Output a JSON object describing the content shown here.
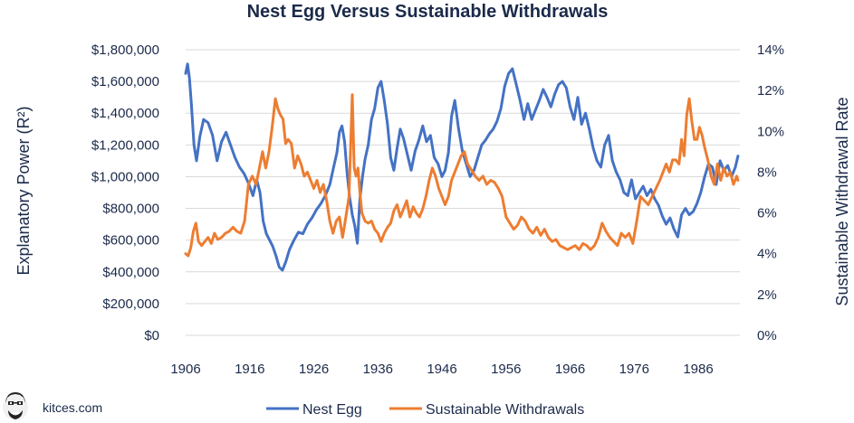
{
  "brand": {
    "name": "kitces.com",
    "logo_icon": "cartoon-face-logo-icon"
  },
  "chart_data": {
    "type": "line",
    "title": "Nest Egg Versus Sustainable Withdrawals",
    "ylabel_left": "Explanatory Power (R²)",
    "ylabel_right": "Sustainable Withdrawal Rate",
    "ylim_left": [
      0,
      1800000
    ],
    "ylim_right": [
      0,
      14
    ],
    "xlim": [
      1906,
      1992.5
    ],
    "x_ticks": [
      {
        "value": 1906,
        "label": "1906"
      },
      {
        "value": 1916,
        "label": "1916"
      },
      {
        "value": 1926,
        "label": "1926"
      },
      {
        "value": 1936,
        "label": "1936"
      },
      {
        "value": 1946,
        "label": "1946"
      },
      {
        "value": 1956,
        "label": "1956"
      },
      {
        "value": 1966,
        "label": "1966"
      },
      {
        "value": 1976,
        "label": "1976"
      },
      {
        "value": 1986,
        "label": "1986"
      }
    ],
    "y_left_ticks": [
      {
        "value": 0,
        "label": "$0"
      },
      {
        "value": 200000,
        "label": "$200,000"
      },
      {
        "value": 400000,
        "label": "$400,000"
      },
      {
        "value": 600000,
        "label": "$600,000"
      },
      {
        "value": 800000,
        "label": "$800,000"
      },
      {
        "value": 1000000,
        "label": "$1,000,000"
      },
      {
        "value": 1200000,
        "label": "$1,200,000"
      },
      {
        "value": 1400000,
        "label": "$1,400,000"
      },
      {
        "value": 1600000,
        "label": "$1,600,000"
      },
      {
        "value": 1800000,
        "label": "$1,800,000"
      }
    ],
    "y_right_ticks": [
      {
        "value": 0,
        "label": "0%"
      },
      {
        "value": 2,
        "label": "2%"
      },
      {
        "value": 4,
        "label": "4%"
      },
      {
        "value": 6,
        "label": "6%"
      },
      {
        "value": 8,
        "label": "8%"
      },
      {
        "value": 10,
        "label": "10%"
      },
      {
        "value": 12,
        "label": "12%"
      },
      {
        "value": 14,
        "label": "14%"
      }
    ],
    "grid": true,
    "legend_position": "bottom-center",
    "series": [
      {
        "name": "Nest Egg",
        "axis": "left",
        "color": "#4472c4",
        "x": [
          1906.0,
          1906.3,
          1906.6,
          1906.9,
          1907.3,
          1907.7,
          1908.2,
          1908.8,
          1909.5,
          1910.2,
          1910.9,
          1911.6,
          1912.3,
          1913.0,
          1913.7,
          1914.4,
          1915.1,
          1915.8,
          1916.5,
          1917.1,
          1917.6,
          1918.1,
          1918.6,
          1919.1,
          1919.6,
          1920.1,
          1920.6,
          1921.1,
          1921.6,
          1922.2,
          1922.9,
          1923.6,
          1924.3,
          1925.0,
          1925.7,
          1926.4,
          1927.1,
          1927.8,
          1928.5,
          1929.1,
          1929.6,
          1930.0,
          1930.4,
          1930.8,
          1931.2,
          1931.6,
          1932.0,
          1932.4,
          1932.8,
          1933.2,
          1933.6,
          1934.0,
          1934.5,
          1935.0,
          1935.5,
          1936.0,
          1936.5,
          1937.0,
          1937.5,
          1938.0,
          1938.5,
          1939.0,
          1939.5,
          1940.0,
          1940.6,
          1941.2,
          1941.8,
          1942.4,
          1943.0,
          1943.6,
          1944.2,
          1944.8,
          1945.4,
          1946.0,
          1946.5,
          1947.0,
          1947.5,
          1948.0,
          1948.6,
          1949.2,
          1949.8,
          1950.4,
          1951.0,
          1951.6,
          1952.2,
          1952.8,
          1953.4,
          1954.0,
          1954.6,
          1955.2,
          1955.8,
          1956.4,
          1957.0,
          1957.6,
          1958.2,
          1958.8,
          1959.4,
          1960.0,
          1960.6,
          1961.2,
          1961.8,
          1962.4,
          1963.0,
          1963.6,
          1964.2,
          1964.8,
          1965.4,
          1966.0,
          1966.6,
          1967.2,
          1967.8,
          1968.4,
          1969.0,
          1969.6,
          1970.2,
          1970.8,
          1971.4,
          1972.0,
          1972.6,
          1973.2,
          1973.8,
          1974.4,
          1975.0,
          1975.6,
          1976.2,
          1976.8,
          1977.4,
          1978.0,
          1978.6,
          1979.2,
          1979.8,
          1980.4,
          1981.0,
          1981.6,
          1982.2,
          1982.8,
          1983.4,
          1984.0,
          1984.6,
          1985.2,
          1985.8,
          1986.4,
          1987.0,
          1987.6,
          1988.2,
          1988.8,
          1989.4,
          1990.0,
          1990.6,
          1991.2,
          1991.8,
          1992.2
        ],
        "y": [
          1650000,
          1710000,
          1620000,
          1450000,
          1200000,
          1100000,
          1250000,
          1360000,
          1340000,
          1260000,
          1100000,
          1220000,
          1280000,
          1200000,
          1120000,
          1060000,
          1020000,
          960000,
          880000,
          980000,
          900000,
          720000,
          640000,
          600000,
          560000,
          500000,
          430000,
          410000,
          460000,
          540000,
          600000,
          650000,
          640000,
          700000,
          740000,
          790000,
          830000,
          880000,
          950000,
          1060000,
          1150000,
          1280000,
          1320000,
          1220000,
          1020000,
          870000,
          760000,
          690000,
          580000,
          860000,
          1000000,
          1110000,
          1200000,
          1360000,
          1430000,
          1560000,
          1600000,
          1480000,
          1330000,
          1120000,
          1040000,
          1180000,
          1300000,
          1240000,
          1140000,
          1040000,
          1160000,
          1230000,
          1320000,
          1220000,
          1260000,
          1120000,
          1080000,
          1000000,
          1040000,
          1150000,
          1380000,
          1480000,
          1300000,
          1160000,
          1080000,
          1000000,
          1040000,
          1120000,
          1200000,
          1230000,
          1270000,
          1300000,
          1350000,
          1430000,
          1570000,
          1650000,
          1680000,
          1580000,
          1480000,
          1360000,
          1460000,
          1360000,
          1420000,
          1480000,
          1550000,
          1500000,
          1440000,
          1520000,
          1580000,
          1600000,
          1560000,
          1440000,
          1360000,
          1500000,
          1330000,
          1400000,
          1300000,
          1180000,
          1100000,
          1060000,
          1200000,
          1260000,
          1100000,
          1030000,
          980000,
          900000,
          880000,
          980000,
          860000,
          900000,
          940000,
          880000,
          920000,
          860000,
          820000,
          750000,
          700000,
          740000,
          670000,
          620000,
          760000,
          800000,
          760000,
          780000,
          830000,
          900000,
          1000000,
          1080000,
          1060000,
          950000,
          1100000,
          1040000,
          1070000,
          1000000,
          1060000,
          1130000
        ]
      },
      {
        "name": "Sustainable Withdrawals",
        "axis": "right",
        "color": "#ed7d31",
        "x": [
          1906.0,
          1906.4,
          1906.8,
          1907.2,
          1907.6,
          1908.0,
          1908.5,
          1909.0,
          1909.5,
          1910.0,
          1910.5,
          1911.0,
          1911.6,
          1912.2,
          1912.8,
          1913.4,
          1914.0,
          1914.6,
          1915.2,
          1915.8,
          1916.4,
          1917.0,
          1917.5,
          1918.0,
          1918.5,
          1919.0,
          1919.5,
          1920.0,
          1920.4,
          1920.8,
          1921.2,
          1921.6,
          1922.0,
          1922.5,
          1923.0,
          1923.5,
          1924.0,
          1924.5,
          1925.0,
          1925.5,
          1926.0,
          1926.5,
          1927.0,
          1927.5,
          1928.0,
          1928.5,
          1929.0,
          1929.5,
          1930.0,
          1930.5,
          1931.0,
          1931.5,
          1932.0,
          1932.3,
          1932.6,
          1932.9,
          1933.2,
          1933.5,
          1934.0,
          1934.5,
          1935.0,
          1935.5,
          1936.0,
          1936.5,
          1937.0,
          1937.5,
          1938.0,
          1938.5,
          1939.0,
          1939.5,
          1940.0,
          1940.5,
          1941.0,
          1941.5,
          1942.0,
          1942.5,
          1943.0,
          1943.5,
          1944.0,
          1944.5,
          1945.0,
          1945.5,
          1946.0,
          1946.5,
          1947.0,
          1947.5,
          1948.0,
          1948.5,
          1949.0,
          1949.5,
          1950.0,
          1950.6,
          1951.2,
          1951.8,
          1952.4,
          1953.0,
          1953.6,
          1954.2,
          1954.8,
          1955.4,
          1956.0,
          1956.6,
          1957.2,
          1957.8,
          1958.4,
          1959.0,
          1959.6,
          1960.2,
          1960.8,
          1961.4,
          1962.0,
          1962.6,
          1963.2,
          1963.8,
          1964.4,
          1965.0,
          1965.6,
          1966.2,
          1966.8,
          1967.4,
          1968.0,
          1968.6,
          1969.2,
          1969.8,
          1970.4,
          1971.0,
          1971.6,
          1972.2,
          1972.8,
          1973.4,
          1974.0,
          1974.6,
          1975.2,
          1975.8,
          1976.4,
          1977.0,
          1977.6,
          1978.2,
          1978.8,
          1979.4,
          1980.0,
          1980.5,
          1981.0,
          1981.5,
          1982.0,
          1982.5,
          1983.0,
          1983.4,
          1983.8,
          1984.2,
          1984.6,
          1985.0,
          1985.4,
          1985.8,
          1986.2,
          1986.6,
          1987.0,
          1987.5,
          1988.0,
          1988.5,
          1989.0,
          1989.5,
          1990.0,
          1990.5,
          1991.0,
          1991.5,
          1992.0,
          1992.2
        ],
        "y": [
          4.0,
          3.9,
          4.3,
          5.1,
          5.5,
          4.6,
          4.4,
          4.6,
          4.8,
          4.5,
          5.0,
          4.7,
          4.8,
          5.0,
          5.1,
          5.3,
          5.1,
          5.0,
          5.6,
          7.4,
          7.8,
          7.4,
          8.2,
          9.0,
          8.2,
          9.0,
          10.2,
          11.6,
          11.1,
          10.8,
          10.6,
          9.4,
          9.6,
          9.4,
          8.2,
          8.8,
          8.4,
          7.8,
          8.0,
          7.6,
          7.2,
          7.6,
          7.0,
          7.4,
          6.6,
          5.6,
          5.0,
          5.6,
          5.8,
          4.8,
          5.8,
          6.8,
          11.8,
          8.2,
          7.8,
          8.2,
          7.0,
          6.0,
          5.6,
          5.5,
          5.6,
          5.2,
          5.0,
          4.6,
          5.0,
          5.3,
          5.5,
          6.1,
          6.4,
          5.8,
          6.2,
          6.6,
          5.8,
          6.3,
          6.0,
          5.8,
          6.2,
          6.8,
          7.6,
          8.2,
          7.8,
          7.2,
          6.8,
          6.4,
          6.8,
          7.6,
          8.0,
          8.4,
          8.8,
          9.0,
          8.4,
          8.1,
          7.8,
          7.6,
          7.8,
          7.4,
          7.6,
          7.5,
          7.2,
          6.8,
          5.8,
          5.5,
          5.2,
          5.4,
          5.8,
          5.6,
          5.2,
          5.0,
          5.3,
          4.9,
          5.2,
          4.8,
          4.6,
          4.7,
          4.4,
          4.3,
          4.2,
          4.3,
          4.4,
          4.2,
          4.5,
          4.4,
          4.2,
          4.4,
          4.8,
          5.5,
          5.1,
          4.8,
          4.6,
          4.4,
          5.0,
          4.8,
          5.0,
          4.5,
          5.6,
          6.8,
          6.6,
          6.4,
          6.8,
          7.2,
          7.6,
          8.0,
          8.4,
          8.0,
          8.6,
          8.6,
          8.4,
          9.6,
          8.8,
          10.8,
          11.6,
          10.5,
          9.6,
          9.6,
          10.2,
          9.8,
          9.2,
          8.6,
          7.8,
          7.4,
          8.4,
          7.6,
          8.2,
          7.8,
          8.0,
          7.4,
          7.8,
          7.6
        ]
      }
    ]
  }
}
